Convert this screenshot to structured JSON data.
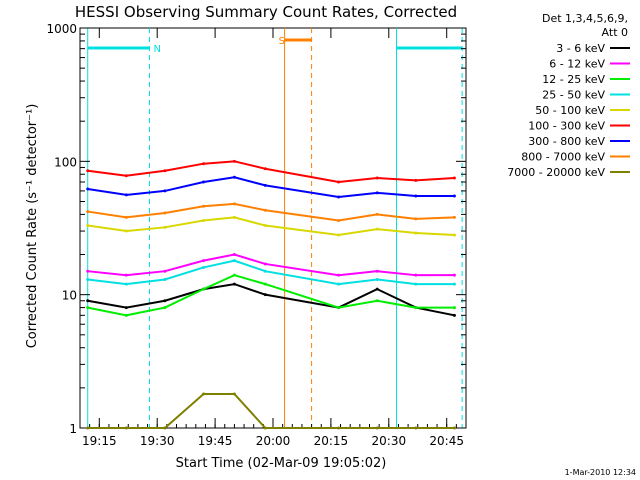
{
  "chart_data": {
    "type": "line",
    "title": "HESSI Observing Summary Count Rates, Corrected",
    "xlabel": "Start Time (02-Mar-09 19:05:02)",
    "ylabel": "Corrected Count Rate (s⁻¹ detector⁻¹)",
    "y_scale": "log",
    "ylim": [
      1,
      1000
    ],
    "y_ticks": [
      1,
      10,
      100,
      1000
    ],
    "y_tick_labels": [
      "1",
      "10",
      "100",
      "1000"
    ],
    "xlim": [
      5,
      105
    ],
    "x_ticks": [
      10,
      25,
      40,
      55,
      70,
      85,
      100
    ],
    "x_tick_labels": [
      "19:15",
      "19:30",
      "19:45",
      "20:00",
      "20:15",
      "20:30",
      "20:45"
    ],
    "legend": {
      "placement": "right",
      "title_lines": [
        "Det 1,3,4,5,6,9,",
        "Att 0"
      ]
    },
    "series": [
      {
        "name": "3 - 6 keV",
        "color": "#000000",
        "values": [
          9,
          8,
          9,
          11,
          12,
          10,
          8,
          11,
          8,
          7
        ]
      },
      {
        "name": "6 - 12 keV",
        "color": "#ff00ff",
        "values": [
          15,
          14,
          15,
          18,
          20,
          17,
          14,
          15,
          14,
          14
        ]
      },
      {
        "name": "12 - 25 keV",
        "color": "#00ee00",
        "values": [
          8,
          7,
          8,
          11,
          14,
          12,
          8,
          9,
          8,
          8
        ]
      },
      {
        "name": "25 - 50 keV",
        "color": "#00e0e0",
        "values": [
          13,
          12,
          13,
          16,
          18,
          15,
          12,
          13,
          12,
          12
        ]
      },
      {
        "name": "50 - 100 keV",
        "color": "#d8d800",
        "values": [
          33,
          30,
          32,
          36,
          38,
          33,
          28,
          31,
          29,
          28
        ]
      },
      {
        "name": "100 - 300 keV",
        "color": "#ff0000",
        "values": [
          85,
          78,
          85,
          96,
          100,
          88,
          70,
          75,
          72,
          75
        ]
      },
      {
        "name": "300 - 800 keV",
        "color": "#0000ff",
        "values": [
          62,
          56,
          60,
          70,
          76,
          66,
          54,
          58,
          55,
          55
        ]
      },
      {
        "name": "800 - 7000 keV",
        "color": "#ff8000",
        "values": [
          42,
          38,
          41,
          46,
          48,
          43,
          36,
          40,
          37,
          38
        ]
      },
      {
        "name": "7000 - 20000 keV",
        "color": "#808000",
        "values": [
          1,
          1,
          1,
          1.8,
          1.8,
          1,
          1,
          1,
          1,
          1
        ]
      }
    ],
    "series_x": [
      7,
      17,
      27,
      37,
      45,
      53,
      72,
      82,
      92,
      102
    ],
    "annotations": [
      {
        "label": "N",
        "color": "#00e0e0",
        "x_start": 7,
        "x_end": 23
      },
      {
        "label": "",
        "color": "#00e0e0",
        "x_start": 87,
        "x_end": 104
      },
      {
        "label": "S",
        "color": "#ff8000",
        "x_start": 58,
        "x_end": 65
      }
    ],
    "footer_timestamp": "1-Mar-2010 12:34"
  }
}
